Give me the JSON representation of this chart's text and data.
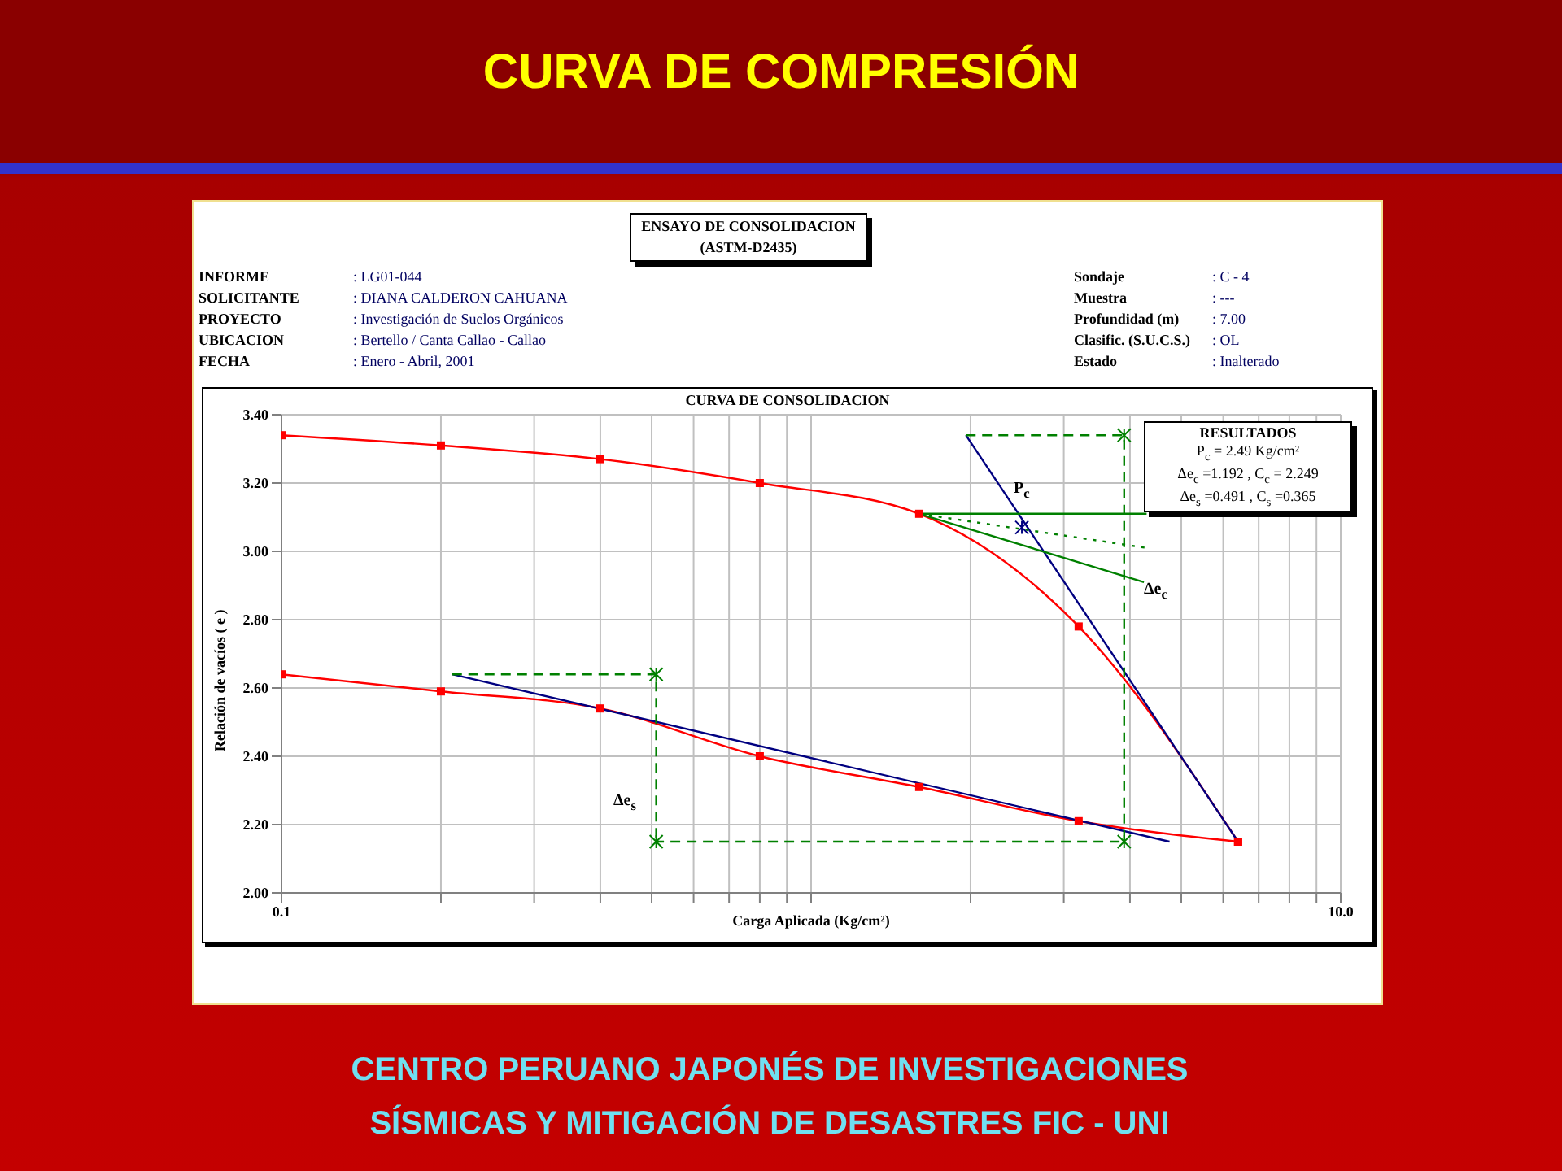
{
  "chart_data": {
    "type": "line",
    "title": "CURVA DE COMPRESIÓN",
    "subtitle": "CURVA DE CONSOLIDACION",
    "xlabel": "Carga Aplicada (Kg/cm²)",
    "ylabel": "Relación de vacíos  ( e )",
    "log": "x",
    "grid": true,
    "marker": "none",
    "line_style": "solid",
    "xlim": [
      0.1,
      10
    ],
    "ylim": [
      2.0,
      3.4
    ],
    "xticks": [
      {
        "value": 0.1,
        "label": "0.1"
      },
      {
        "value": 0.2,
        "label": null
      },
      {
        "value": 0.3,
        "label": null
      },
      {
        "value": 0.4,
        "label": null
      },
      {
        "value": 0.5,
        "label": null
      },
      {
        "value": 0.6,
        "label": null
      },
      {
        "value": 0.7,
        "label": null
      },
      {
        "value": 0.8,
        "label": null
      },
      {
        "value": 0.9,
        "label": null
      },
      {
        "value": 1,
        "label": null
      },
      {
        "value": 2,
        "label": null
      },
      {
        "value": 3,
        "label": null
      },
      {
        "value": 4,
        "label": null
      },
      {
        "value": 5,
        "label": null
      },
      {
        "value": 6,
        "label": null
      },
      {
        "value": 7,
        "label": null
      },
      {
        "value": 8,
        "label": null
      },
      {
        "value": 9,
        "label": null
      },
      {
        "value": 10,
        "label": "10.0"
      }
    ],
    "yticks": [
      {
        "value": 2.0,
        "label": "2.00"
      },
      {
        "value": 2.2,
        "label": "2.20"
      },
      {
        "value": 2.4,
        "label": "2.40"
      },
      {
        "value": 2.6,
        "label": "2.60"
      },
      {
        "value": 2.8,
        "label": "2.80"
      },
      {
        "value": 3.0,
        "label": "3.00"
      },
      {
        "value": 3.2,
        "label": "3.20"
      },
      {
        "value": 3.4,
        "label": "3.40"
      }
    ],
    "series": [
      {
        "color": "#ff0000",
        "marker": "square",
        "x": [
          0.1,
          0.2,
          0.4,
          0.8,
          1.6,
          3.2,
          6.4
        ],
        "values": [
          3.34,
          3.31,
          3.27,
          3.2,
          3.11,
          2.78,
          2.15
        ]
      },
      {
        "color": "#ff0000",
        "marker": "square",
        "x": [
          0.1,
          0.2,
          0.4,
          0.8,
          1.6,
          3.2,
          6.4
        ],
        "values": [
          2.64,
          2.59,
          2.54,
          2.4,
          2.31,
          2.21,
          2.15
        ]
      },
      {
        "color": "#000080",
        "x": [
          1.96,
          6.4
        ],
        "values": [
          3.34,
          2.15
        ]
      },
      {
        "color": "#000080",
        "x": [
          0.21,
          4.75
        ],
        "values": [
          2.64,
          2.15
        ]
      },
      {
        "color": "#008000",
        "line_style": "dashed",
        "x": [
          1.96,
          3.9,
          3.9,
          0.51
        ],
        "values": [
          3.34,
          3.34,
          2.15,
          2.15
        ]
      },
      {
        "color": "#008000",
        "line_style": "dashed",
        "x": [
          0.21,
          0.51,
          0.51
        ],
        "values": [
          2.64,
          2.64,
          2.15
        ]
      },
      {
        "color": "#008000",
        "x": [
          1.6,
          4.3
        ],
        "values": [
          3.11,
          3.11
        ]
      },
      {
        "color": "#008000",
        "x": [
          1.6,
          4.25
        ],
        "values": [
          3.11,
          2.91
        ]
      },
      {
        "color": "#008000",
        "line_style": "dotted",
        "x": [
          1.6,
          4.3
        ],
        "values": [
          3.11,
          3.01
        ]
      },
      {
        "type": "scatter",
        "color": "#008000",
        "marker": "cross",
        "x": [
          3.9,
          3.9,
          0.51,
          0.51
        ],
        "values": [
          3.34,
          2.15,
          2.64,
          2.15
        ]
      },
      {
        "type": "scatter",
        "color": "#000080",
        "marker": "cross",
        "x": [
          2.5
        ],
        "values": [
          3.07
        ]
      }
    ],
    "annotations": [
      "ENSAYO DE CONSOLIDACION",
      "(ASTM-D2435)",
      "INFORME",
      ": LG01-044",
      "SOLICITANTE",
      ": DIANA CALDERON CAHUANA",
      "PROYECTO",
      ": Investigación de Suelos Orgánicos",
      "UBICACION",
      ": Bertello / Canta Callao - Callao",
      "FECHA",
      ": Enero - Abril, 2001",
      "Sondaje",
      ": C - 4",
      "Muestra",
      ": ---",
      "Profundidad (m)",
      ": 7.00",
      "Clasific. (S.U.C.S.)",
      ": OL",
      "Estado",
      ": Inalterado",
      "RESULTADOS",
      "P$_{c}$ = 2.49 Kg/cm²",
      "Δe$_{c}$ =1.192 , C$_{c}$ = 2.249",
      "Δe$_{s}$ =0.491 , C$_{s}$ =0.365",
      "CENTRO PERUANO JAPONÉS DE INVESTIGACIONES",
      "SÍSMICAS Y MITIGACIÓN DE DESASTRES FIC - UNI",
      "P$_{c}$",
      "Δe$_{c}$",
      "Δe$_{s}$"
    ]
  }
}
